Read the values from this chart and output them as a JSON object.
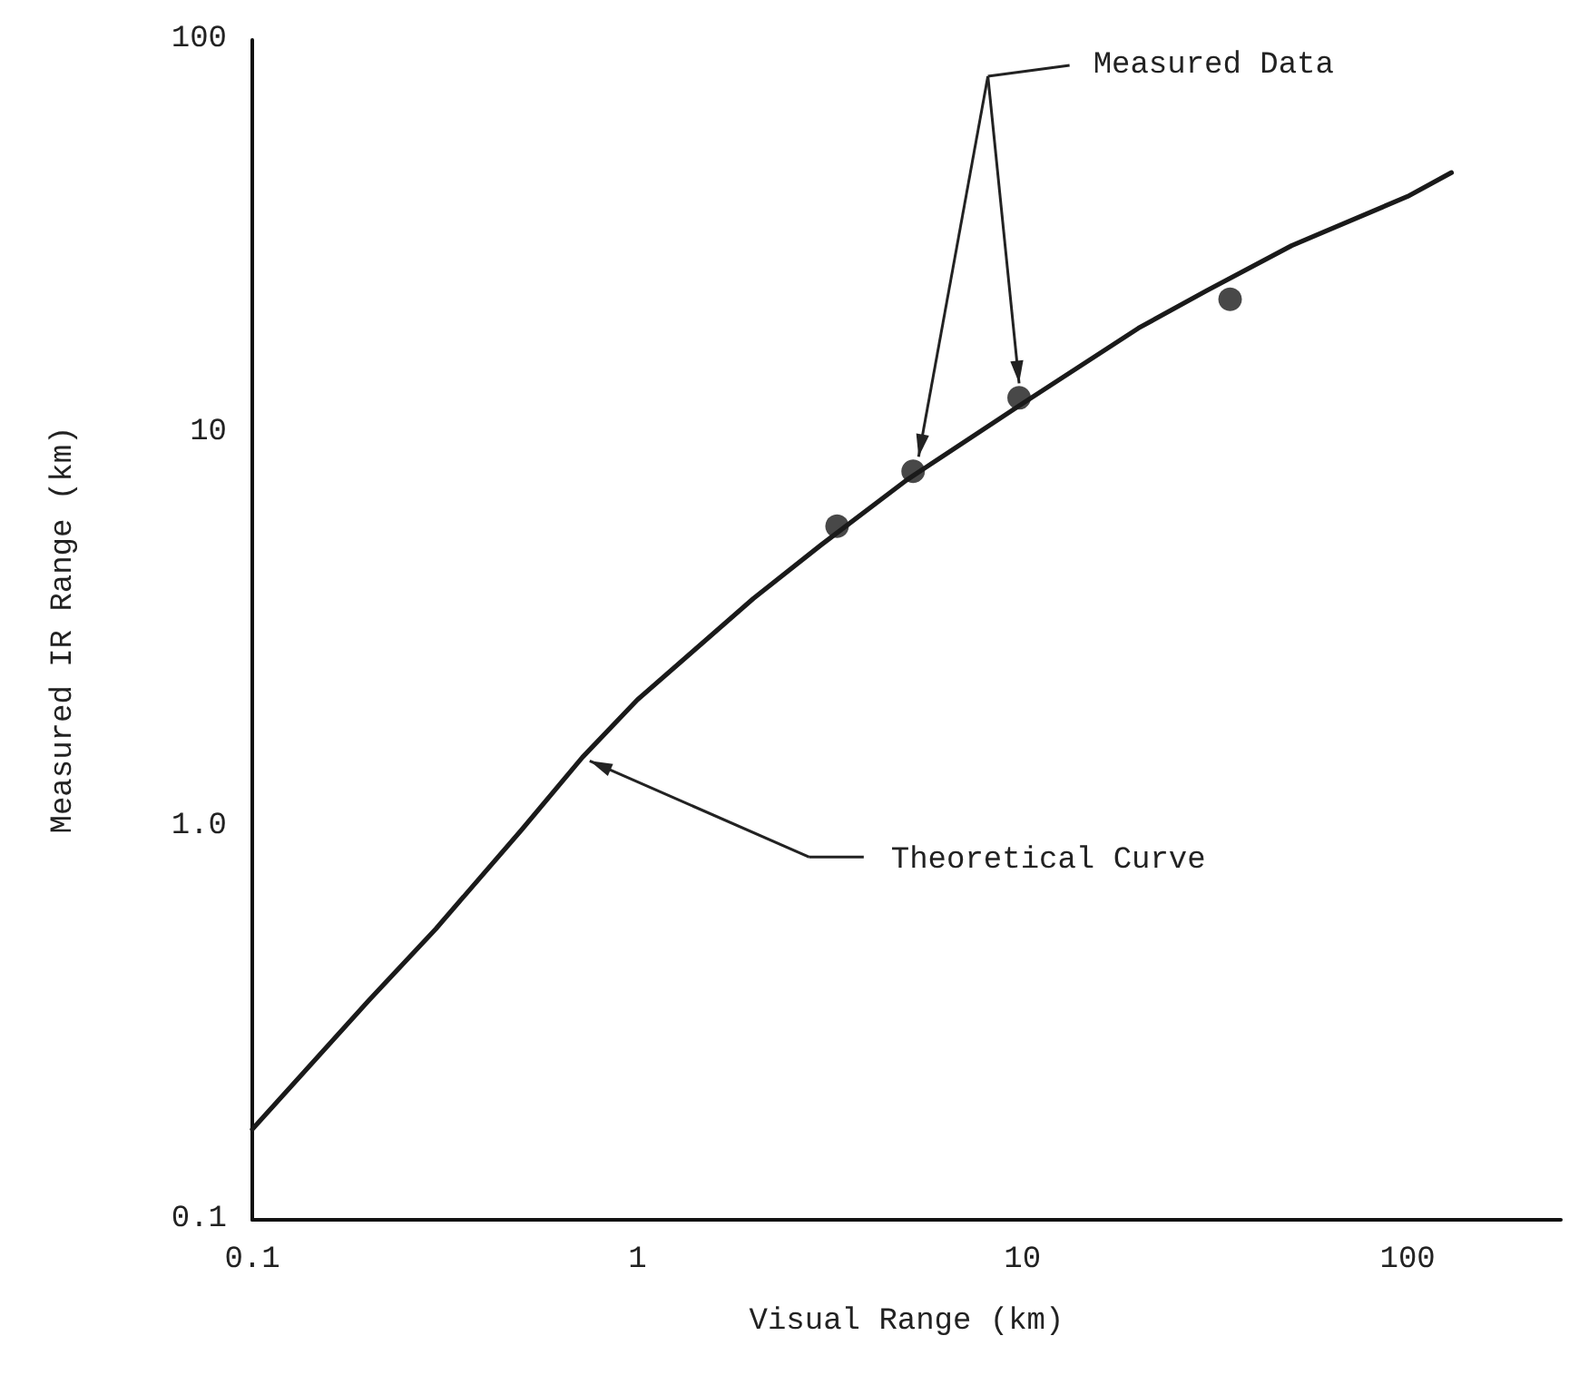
{
  "chart_data": {
    "type": "scatter",
    "xlabel": "Visual Range (km)",
    "ylabel": "Measured IR Range (km)",
    "log": "xy",
    "xlim": [
      0.1,
      250
    ],
    "ylim": [
      0.1,
      100
    ],
    "xticks": [
      0.1,
      1,
      10,
      100
    ],
    "yticks": [
      0.1,
      {
        "value": 1,
        "label": "1.0"
      },
      10,
      100
    ],
    "grid": false,
    "marker": "circle",
    "series": [
      {
        "type": "line",
        "color": "#1a1a1a",
        "marker": "none",
        "line_style": "solid",
        "x": [
          0.1,
          0.2,
          0.3,
          0.5,
          0.72,
          1,
          2,
          3,
          5,
          10,
          20,
          30,
          50,
          100,
          130
        ],
        "values": [
          0.17,
          0.36,
          0.55,
          0.98,
          1.5,
          2.1,
          3.8,
          5.2,
          7.6,
          11.9,
          18.5,
          23,
          30,
          40,
          46
        ]
      },
      {
        "color": "#1a1a1a",
        "x": [
          3.3,
          5.2,
          9.8,
          34.6
        ],
        "values": [
          5.8,
          8.0,
          12.3,
          21.9
        ]
      }
    ],
    "annotations": [
      {
        "text": "Measured Data"
      },
      "Theoretical Curve"
    ]
  }
}
